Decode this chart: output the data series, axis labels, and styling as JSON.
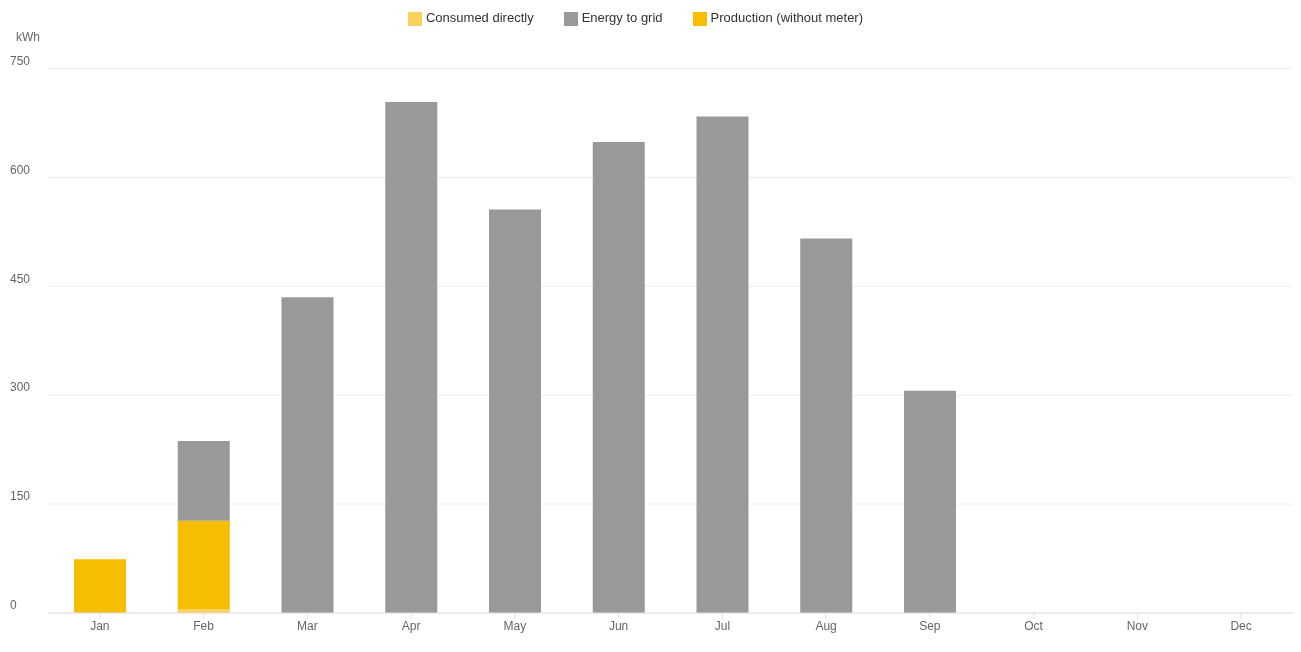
{
  "chart_data": {
    "type": "bar",
    "ylabel": "kWh",
    "categories": [
      "Jan",
      "Feb",
      "Mar",
      "Apr",
      "May",
      "Jun",
      "Jul",
      "Aug",
      "Sep",
      "Oct",
      "Nov",
      "Dec"
    ],
    "stacked": true,
    "series": [
      {
        "name": "Consumed directly",
        "color": "#fdd25c",
        "values": [
          0,
          5,
          0,
          0,
          0,
          0,
          0,
          0,
          0,
          0,
          0,
          0
        ]
      },
      {
        "name": "Production (without meter)",
        "color": "#f5be00",
        "values": [
          74,
          122,
          0,
          0,
          0,
          0,
          0,
          0,
          0,
          0,
          0,
          0
        ]
      },
      {
        "name": "Energy to grid",
        "color": "#999999",
        "values": [
          0,
          110,
          435,
          704,
          556,
          649,
          684,
          516,
          306,
          0,
          0,
          0
        ]
      }
    ],
    "ylim": [
      0,
      750
    ],
    "yticks": [
      0,
      150,
      300,
      450,
      600,
      750
    ],
    "grid": "y",
    "legend": "top"
  }
}
